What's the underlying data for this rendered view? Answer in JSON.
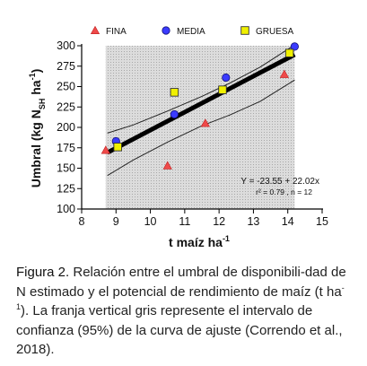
{
  "chart_data": {
    "type": "scatter",
    "title": "",
    "xlabel": "t maíz ha",
    "xlabel_sup": "-1",
    "ylabel_parts": [
      "Umbral (kg N",
      "SH",
      " ha",
      "-1",
      ")"
    ],
    "xlim": [
      8,
      15
    ],
    "ylim": [
      100,
      300
    ],
    "xticks": [
      8,
      9,
      10,
      11,
      12,
      13,
      14,
      15
    ],
    "yticks": [
      100,
      125,
      150,
      175,
      200,
      225,
      250,
      275,
      300
    ],
    "grid": false,
    "legend_position": "top",
    "shaded_band": {
      "x_from": 8.7,
      "x_to": 14.2
    },
    "series": [
      {
        "name": "FINA",
        "marker": "triangle",
        "color": "#ef4a4a",
        "points": [
          [
            8.7,
            172
          ],
          [
            10.5,
            153
          ],
          [
            11.6,
            205
          ],
          [
            13.9,
            265
          ]
        ]
      },
      {
        "name": "MEDIA",
        "marker": "circle",
        "color": "#3b3bff",
        "points": [
          [
            9.0,
            183
          ],
          [
            10.7,
            216
          ],
          [
            12.2,
            261
          ],
          [
            14.2,
            299
          ]
        ]
      },
      {
        "name": "GRUESA",
        "marker": "square",
        "color": "#f0f000",
        "points": [
          [
            9.05,
            176
          ],
          [
            10.7,
            243
          ],
          [
            12.1,
            246
          ],
          [
            14.05,
            291
          ]
        ]
      }
    ],
    "fit_line": {
      "intercept": -23.55,
      "slope": 22.02,
      "x_from": 8.75,
      "x_to": 14.2
    },
    "confidence_upper": [
      [
        8.75,
        193
      ],
      [
        9.5,
        203
      ],
      [
        10.5,
        220
      ],
      [
        11.5,
        238
      ],
      [
        12.3,
        254
      ],
      [
        13.2,
        274
      ],
      [
        14.2,
        301
      ]
    ],
    "confidence_lower": [
      [
        8.75,
        141
      ],
      [
        9.5,
        160
      ],
      [
        10.5,
        182
      ],
      [
        11.5,
        202
      ],
      [
        12.3,
        215
      ],
      [
        13.2,
        232
      ],
      [
        14.2,
        258
      ]
    ],
    "annotations": [
      "Y = -23.55 + 22.02x",
      "r² = 0.79 , n = 12"
    ]
  },
  "caption": {
    "label": "Figura 2.",
    "text_before_sup": " Relación entre el umbral de disponibili-dad de N estimado y el potencial de rendimiento de maíz (t ha",
    "sup": "-1",
    "text_after_sup": "). La franja vertical gris represente el intervalo de confianza (95%) de la curva de ajuste (Correndo et al., 2018)."
  }
}
